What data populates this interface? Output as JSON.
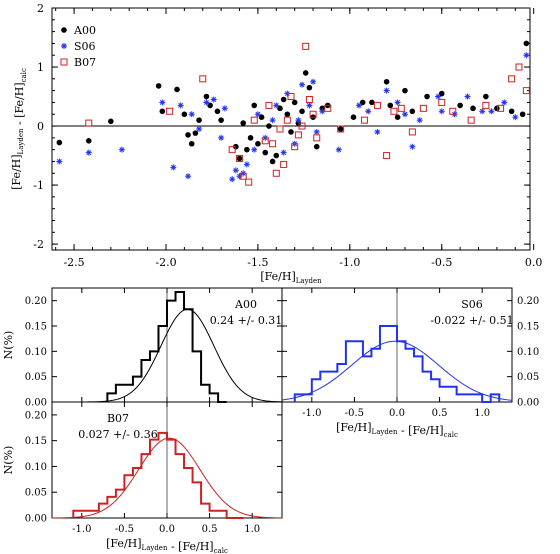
{
  "colors": {
    "a00": "#000000",
    "s06": "#2233ee",
    "b07": "#cc2222",
    "axis": "#000000",
    "zero_line": "#666666"
  },
  "chart_data": [
    {
      "type": "scatter",
      "id": "top",
      "xlabel": "[Fe/H]_Layden",
      "ylabel": "[Fe/H]_Layden - [Fe/H]_calc",
      "xlim": [
        -2.62,
        -0.02
      ],
      "ylim": [
        -2.1,
        2.0
      ],
      "xticks": [
        -2.5,
        -2.0,
        -1.5,
        -1.0,
        -0.5,
        0.0
      ],
      "xtick_labels": [
        "-2.5",
        "-2.0",
        "-1.5",
        "-1.0",
        "-0.5",
        "0.0"
      ],
      "yticks": [
        -2,
        -1,
        0,
        1,
        2
      ],
      "ytick_labels": [
        "-2",
        "-1",
        "0",
        "1",
        "2"
      ],
      "hline": 0,
      "legend_position": "top-left",
      "series": [
        {
          "name": "A00",
          "marker": "filled-circle",
          "points": [
            [
              -2.58,
              -0.28
            ],
            [
              -2.42,
              -0.25
            ],
            [
              -2.3,
              0.08
            ],
            [
              -2.04,
              0.68
            ],
            [
              -2.02,
              0.25
            ],
            [
              -1.94,
              0.62
            ],
            [
              -1.9,
              0.2
            ],
            [
              -1.88,
              -0.15
            ],
            [
              -1.86,
              -0.3
            ],
            [
              -1.84,
              -0.12
            ],
            [
              -1.82,
              0.1
            ],
            [
              -1.78,
              0.5
            ],
            [
              -1.76,
              0.35
            ],
            [
              -1.72,
              0.25
            ],
            [
              -1.7,
              0.1
            ],
            [
              -1.62,
              -0.35
            ],
            [
              -1.6,
              -0.55
            ],
            [
              -1.58,
              0.05
            ],
            [
              -1.56,
              -0.4
            ],
            [
              -1.54,
              -0.2
            ],
            [
              -1.52,
              0.35
            ],
            [
              -1.5,
              -0.3
            ],
            [
              -1.48,
              0.15
            ],
            [
              -1.46,
              -0.45
            ],
            [
              -1.44,
              0.0
            ],
            [
              -1.42,
              -0.6
            ],
            [
              -1.4,
              -0.5
            ],
            [
              -1.38,
              0.3
            ],
            [
              -1.36,
              0.45
            ],
            [
              -1.34,
              0.2
            ],
            [
              -1.32,
              -0.1
            ],
            [
              -1.3,
              0.4
            ],
            [
              -1.28,
              0.05
            ],
            [
              -1.26,
              0.25
            ],
            [
              -1.24,
              0.9
            ],
            [
              -1.22,
              0.65
            ],
            [
              -1.2,
              0.15
            ],
            [
              -1.18,
              -0.35
            ],
            [
              -1.15,
              0.3
            ],
            [
              -1.12,
              0.35
            ],
            [
              -1.05,
              -0.05
            ],
            [
              -0.98,
              0.15
            ],
            [
              -0.93,
              0.4
            ],
            [
              -0.88,
              0.4
            ],
            [
              -0.8,
              0.75
            ],
            [
              -0.78,
              0.35
            ],
            [
              -0.74,
              0.15
            ],
            [
              -0.7,
              0.6
            ],
            [
              -0.66,
              0.25
            ],
            [
              -0.58,
              0.5
            ],
            [
              -0.5,
              0.55
            ],
            [
              -0.4,
              0.35
            ],
            [
              -0.33,
              0.3
            ],
            [
              -0.26,
              0.5
            ],
            [
              -0.2,
              0.3
            ],
            [
              -0.12,
              0.25
            ],
            [
              -0.06,
              0.2
            ],
            [
              -0.04,
              1.4
            ]
          ]
        },
        {
          "name": "S06",
          "marker": "asterisk",
          "points": [
            [
              -2.58,
              -0.6
            ],
            [
              -2.42,
              -0.45
            ],
            [
              -2.24,
              -0.4
            ],
            [
              -2.02,
              0.4
            ],
            [
              -1.96,
              -0.7
            ],
            [
              -1.92,
              0.35
            ],
            [
              -1.88,
              -0.85
            ],
            [
              -1.86,
              0.2
            ],
            [
              -1.82,
              -0.05
            ],
            [
              -1.78,
              0.4
            ],
            [
              -1.74,
              0.45
            ],
            [
              -1.7,
              -0.2
            ],
            [
              -1.68,
              0.3
            ],
            [
              -1.64,
              -0.9
            ],
            [
              -1.62,
              -0.75
            ],
            [
              -1.6,
              -0.85
            ],
            [
              -1.58,
              -0.8
            ],
            [
              -1.56,
              -0.65
            ],
            [
              -1.52,
              -0.4
            ],
            [
              -1.5,
              0.2
            ],
            [
              -1.46,
              -0.2
            ],
            [
              -1.42,
              0.1
            ],
            [
              -1.4,
              0.35
            ],
            [
              -1.36,
              -0.45
            ],
            [
              -1.34,
              0.55
            ],
            [
              -1.3,
              -0.3
            ],
            [
              -1.28,
              0.1
            ],
            [
              -1.26,
              0.7
            ],
            [
              -1.22,
              0.35
            ],
            [
              -1.2,
              0.75
            ],
            [
              -1.18,
              -0.1
            ],
            [
              -1.15,
              0.25
            ],
            [
              -1.06,
              -0.4
            ],
            [
              -0.95,
              0.35
            ],
            [
              -0.9,
              0.25
            ],
            [
              -0.85,
              -0.1
            ],
            [
              -0.8,
              0.6
            ],
            [
              -0.74,
              0.4
            ],
            [
              -0.7,
              0.2
            ],
            [
              -0.66,
              -0.35
            ],
            [
              -0.62,
              0.1
            ],
            [
              -0.52,
              0.5
            ],
            [
              -0.5,
              0.25
            ],
            [
              -0.43,
              0.2
            ],
            [
              -0.36,
              0.5
            ],
            [
              -0.28,
              0.25
            ],
            [
              -0.23,
              0.25
            ],
            [
              -0.16,
              0.4
            ],
            [
              -0.1,
              0.15
            ],
            [
              -0.04,
              1.2
            ]
          ]
        },
        {
          "name": "B07",
          "marker": "open-square",
          "points": [
            [
              -2.42,
              0.05
            ],
            [
              -1.98,
              0.25
            ],
            [
              -1.8,
              0.8
            ],
            [
              -1.64,
              -0.4
            ],
            [
              -1.6,
              -0.55
            ],
            [
              -1.58,
              -0.85
            ],
            [
              -1.55,
              -0.95
            ],
            [
              -1.52,
              0.1
            ],
            [
              -1.46,
              -0.25
            ],
            [
              -1.44,
              0.35
            ],
            [
              -1.42,
              -0.3
            ],
            [
              -1.4,
              -0.8
            ],
            [
              -1.38,
              -0.05
            ],
            [
              -1.36,
              -0.65
            ],
            [
              -1.34,
              0.1
            ],
            [
              -1.32,
              0.5
            ],
            [
              -1.3,
              -0.35
            ],
            [
              -1.28,
              -0.15
            ],
            [
              -1.26,
              0.0
            ],
            [
              -1.24,
              1.35
            ],
            [
              -1.22,
              0.45
            ],
            [
              -1.2,
              0.2
            ],
            [
              -1.18,
              -0.2
            ],
            [
              -1.12,
              0.3
            ],
            [
              -1.05,
              -0.05
            ],
            [
              -0.92,
              0.1
            ],
            [
              -0.85,
              0.35
            ],
            [
              -0.8,
              -0.5
            ],
            [
              -0.76,
              0.25
            ],
            [
              -0.72,
              0.3
            ],
            [
              -0.66,
              -0.1
            ],
            [
              -0.6,
              0.3
            ],
            [
              -0.5,
              0.4
            ],
            [
              -0.44,
              0.25
            ],
            [
              -0.34,
              0.1
            ],
            [
              -0.26,
              0.35
            ],
            [
              -0.18,
              0.3
            ],
            [
              -0.12,
              0.8
            ],
            [
              -0.08,
              1.0
            ],
            [
              -0.04,
              0.6
            ]
          ]
        }
      ]
    },
    {
      "type": "bar",
      "id": "a00",
      "title": "A00",
      "annotation": "0.24 +/- 0.31",
      "ylabel": "N(%)",
      "xlim": [
        -1.35,
        1.35
      ],
      "ylim": [
        0.0,
        0.225
      ],
      "yticks": [
        0.0,
        0.05,
        0.1,
        0.15,
        0.2
      ],
      "ytick_labels": [
        "0.00",
        "0.05",
        "0.10",
        "0.15",
        "0.20"
      ],
      "vline": 0,
      "bin_width": 0.1,
      "bin_edges_start": -0.7,
      "values": [
        0.017,
        0.034,
        0.034,
        0.05,
        0.083,
        0.1,
        0.15,
        0.2,
        0.217,
        0.183,
        0.1,
        0.034,
        0.017,
        0.0
      ],
      "fit": {
        "mean": 0.24,
        "sigma": 0.31,
        "peak": 0.183
      }
    },
    {
      "type": "bar",
      "id": "s06",
      "title": "S06",
      "annotation": "-0.022 +/- 0.51",
      "xlabel": "[Fe/H]_Layden - [Fe/H]_calc",
      "xlim": [
        -1.35,
        1.35
      ],
      "ylim": [
        0.0,
        0.225
      ],
      "xticks": [
        -1.0,
        -0.5,
        0.0,
        0.5,
        1.0
      ],
      "xtick_labels": [
        "-1.0",
        "-0.5",
        "0.0",
        "0.5",
        "1.0"
      ],
      "yticks": [
        0.0,
        0.05,
        0.1,
        0.15,
        0.2
      ],
      "ytick_labels": [
        "0.00",
        "0.05",
        "0.10",
        "0.15",
        "0.20"
      ],
      "vline": 0,
      "bin_width": 0.1,
      "bin_edges_start": -1.2,
      "values": [
        0.015,
        0.015,
        0.045,
        0.06,
        0.06,
        0.075,
        0.12,
        0.12,
        0.09,
        0.105,
        0.15,
        0.15,
        0.12,
        0.105,
        0.09,
        0.06,
        0.045,
        0.03,
        0.03,
        0.015,
        0.015,
        0.015,
        0.0,
        0.015
      ],
      "fit": {
        "mean": -0.022,
        "sigma": 0.51,
        "peak": 0.12
      }
    },
    {
      "type": "bar",
      "id": "b07",
      "title": "B07",
      "annotation": "0.027 +/- 0.36",
      "ylabel": "N(%)",
      "xlabel": "[Fe/H]_Layden - [Fe/H]_calc",
      "xlim": [
        -1.35,
        1.35
      ],
      "ylim": [
        0.0,
        0.225
      ],
      "xticks": [
        -1.0,
        -0.5,
        0.0,
        0.5,
        1.0
      ],
      "xtick_labels": [
        "-1.0",
        "-0.5",
        "0.0",
        "0.5",
        "1.0"
      ],
      "yticks": [
        0.0,
        0.05,
        0.1,
        0.15,
        0.2
      ],
      "ytick_labels": [
        "0.00",
        "0.05",
        "0.10",
        "0.15",
        "0.20"
      ],
      "vline": 0,
      "bin_width": 0.1,
      "bin_edges_start": -1.1,
      "values": [
        0.014,
        0.014,
        0.014,
        0.028,
        0.041,
        0.055,
        0.083,
        0.097,
        0.124,
        0.152,
        0.165,
        0.152,
        0.124,
        0.097,
        0.069,
        0.028,
        0.014,
        0.014,
        0.0,
        0.0
      ],
      "fit": {
        "mean": 0.027,
        "sigma": 0.36,
        "peak": 0.155
      }
    }
  ]
}
